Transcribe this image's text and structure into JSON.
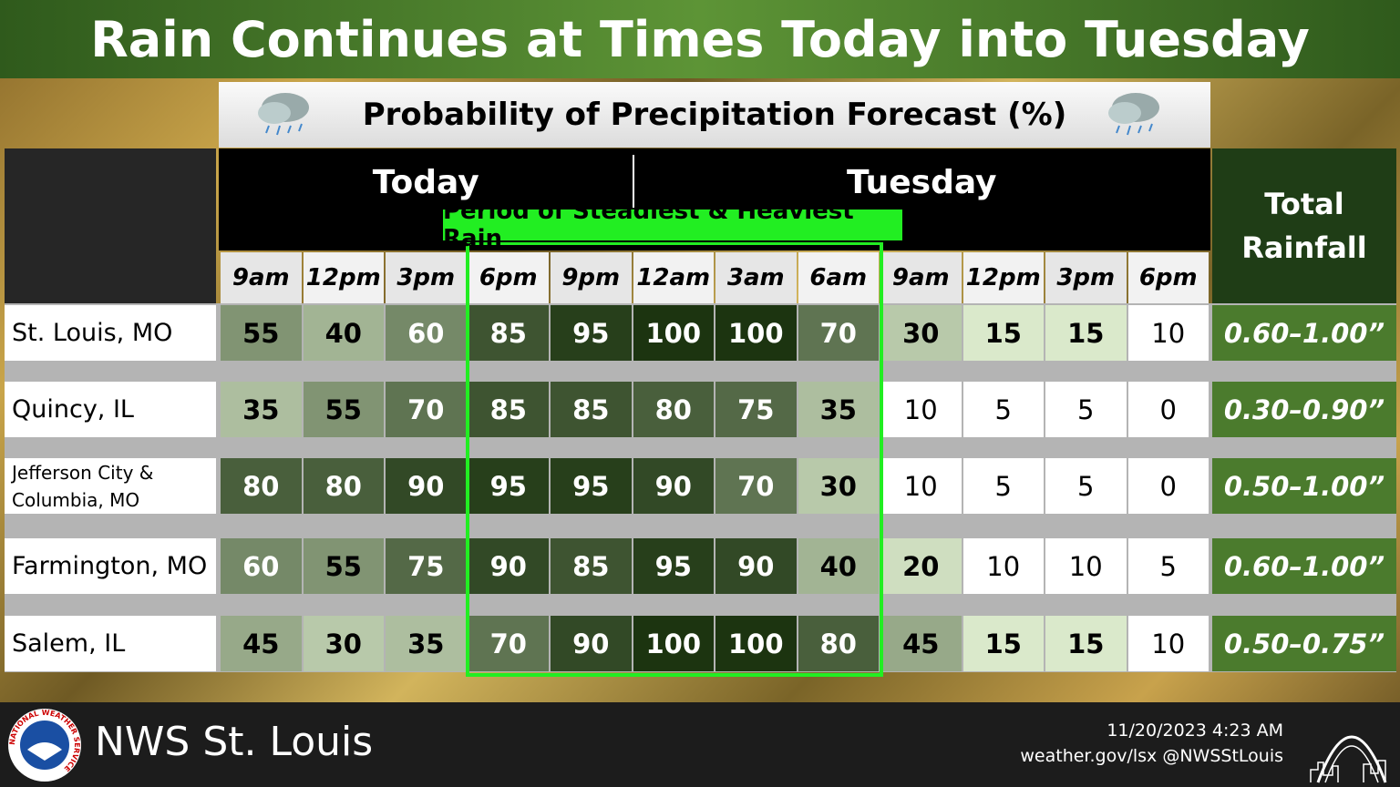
{
  "title": "Rain Continues at Times Today into Tuesday",
  "table": {
    "subtitle": "Probability of Precipitation Forecast (%)",
    "days": [
      "Today",
      "Tuesday"
    ],
    "annotation": "Period of Steadiest & Heaviest Rain",
    "total_header": "Total Rainfall",
    "times": [
      "9am",
      "12pm",
      "3pm",
      "6pm",
      "9pm",
      "12am",
      "3am",
      "6am",
      "9am",
      "12pm",
      "3pm",
      "6pm"
    ],
    "rows": [
      {
        "location": "St. Louis, MO",
        "values": [
          55,
          40,
          60,
          85,
          95,
          100,
          100,
          70,
          30,
          15,
          15,
          10
        ],
        "rainfall": "0.60–1.00”"
      },
      {
        "location": "Quincy, IL",
        "values": [
          35,
          55,
          70,
          85,
          85,
          80,
          75,
          35,
          10,
          5,
          5,
          0
        ],
        "rainfall": "0.30–0.90”"
      },
      {
        "location": "Jefferson City & Columbia, MO",
        "values": [
          80,
          80,
          90,
          95,
          95,
          90,
          70,
          30,
          10,
          5,
          5,
          0
        ],
        "rainfall": "0.50–1.00”"
      },
      {
        "location": "Farmington, MO",
        "values": [
          60,
          55,
          75,
          90,
          85,
          95,
          90,
          40,
          20,
          10,
          10,
          5
        ],
        "rainfall": "0.60–1.00”"
      },
      {
        "location": "Salem, IL",
        "values": [
          45,
          30,
          35,
          70,
          90,
          100,
          100,
          80,
          45,
          15,
          15,
          10
        ],
        "rainfall": "0.50–0.75”"
      }
    ]
  },
  "footer": {
    "logo_text": "NATIONAL WEATHER SERVICE",
    "office": "NWS St. Louis",
    "timestamp": "11/20/2023 4:23 AM",
    "links": "weather.gov/lsx @NWSStLouis"
  }
}
